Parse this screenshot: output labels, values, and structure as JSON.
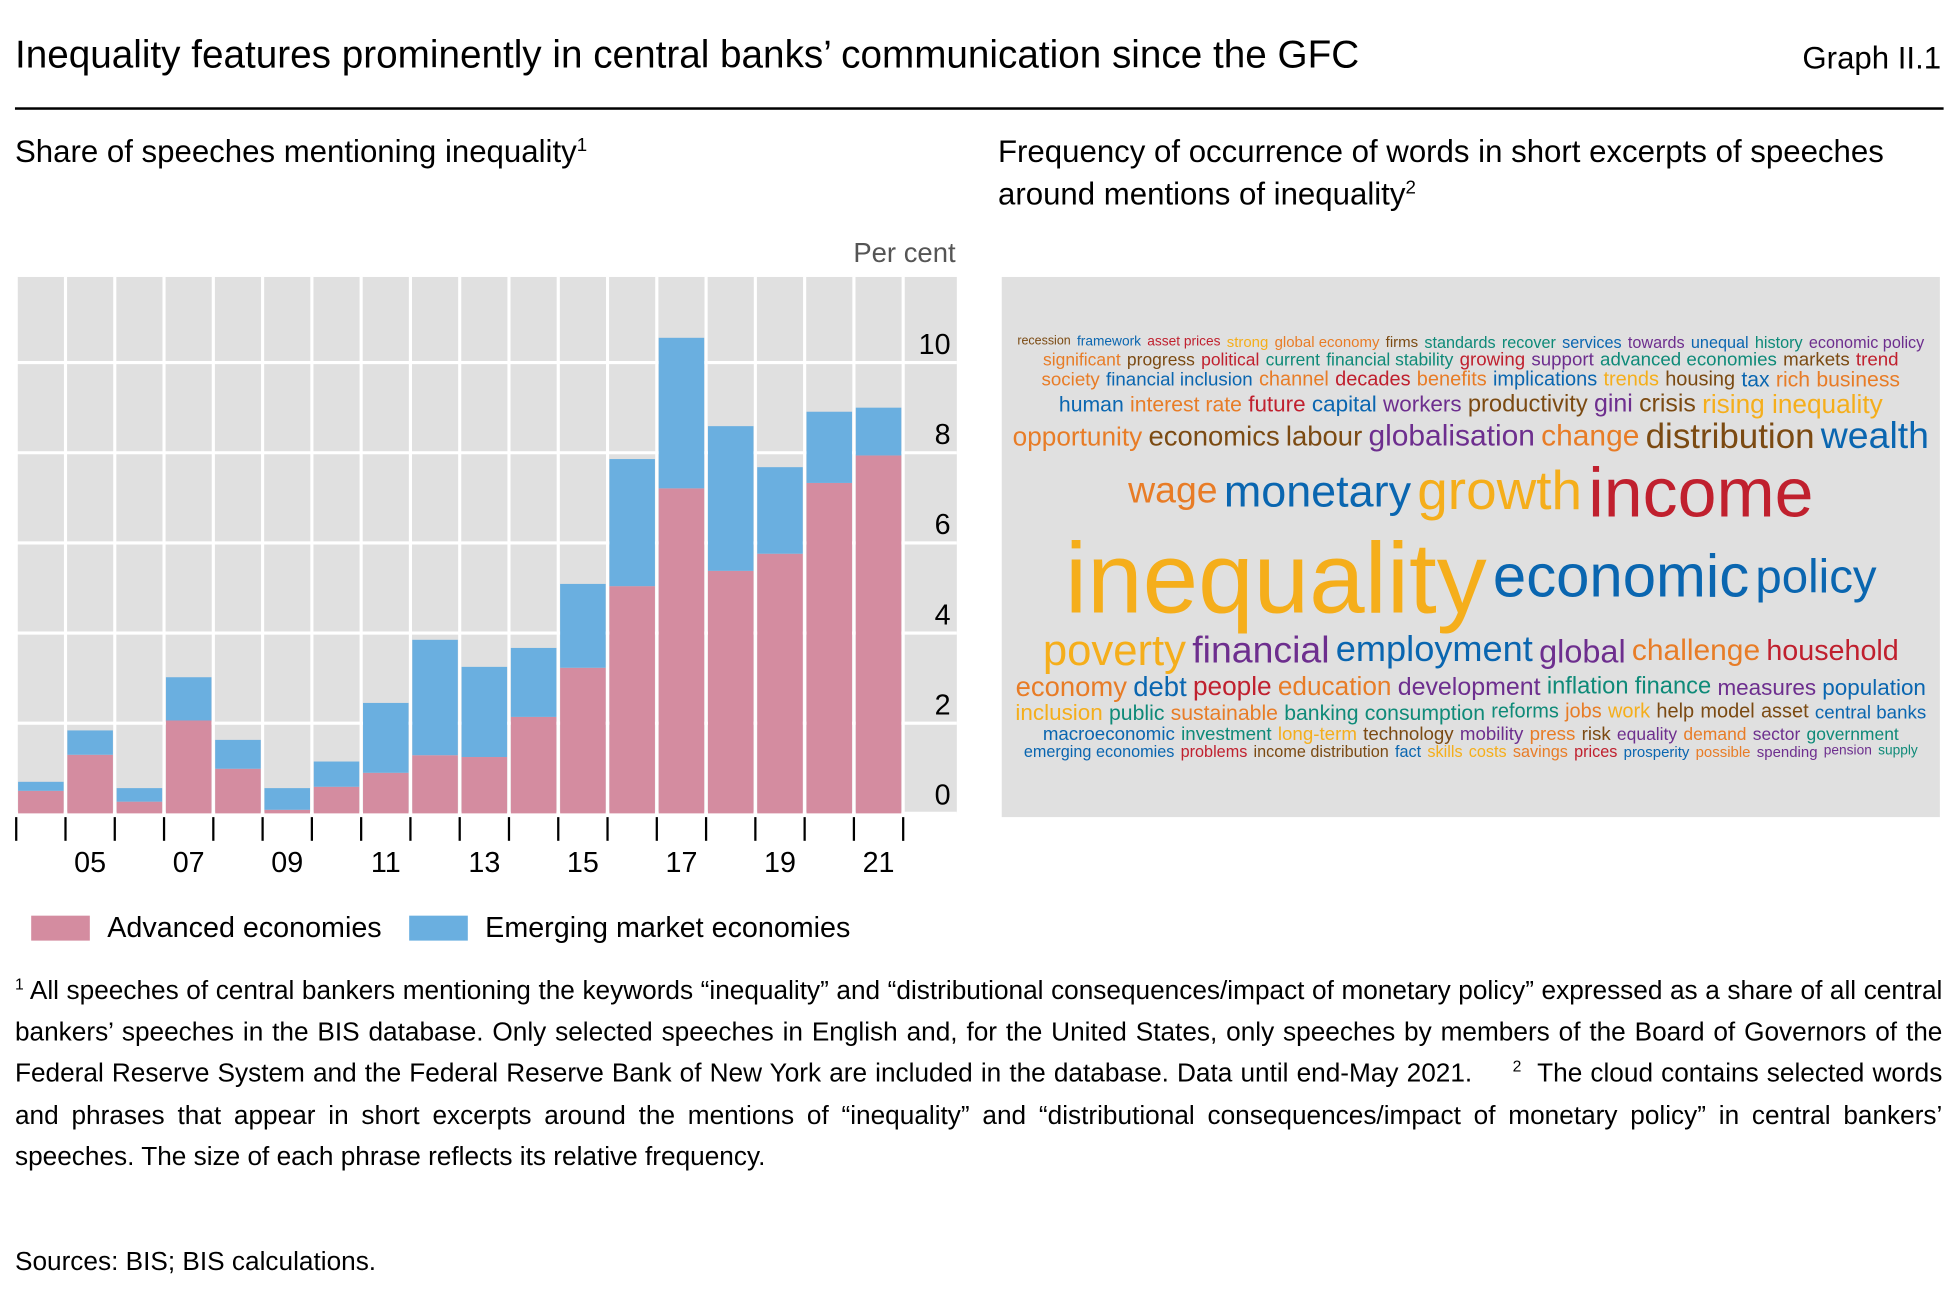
{
  "header": {
    "title": "Inequality features prominently in central banks’ communication since the GFC",
    "graph_number": "Graph II.1"
  },
  "left_panel": {
    "subtitle": "Share of speeches mentioning inequality",
    "subtitle_note": "1"
  },
  "right_panel": {
    "subtitle": "Frequency of occurrence of words in short excerpts of speeches around mentions of inequality",
    "subtitle_note": "2"
  },
  "colors": {
    "advanced": "#d48ca0",
    "emerging": "#6aafe0",
    "plot_bg": "#e0e0e0",
    "Y": "#f5ae1b",
    "R": "#c0202e",
    "B": "#0a66b0",
    "P": "#6d2e8e",
    "Br": "#7b4a12",
    "T": "#0e8a78",
    "O": "#e87c26"
  },
  "chart_data": {
    "type": "bar",
    "stacked": true,
    "title": "Share of speeches mentioning inequality",
    "ylabel": "Per cent",
    "xlabel": "",
    "categories": [
      "04",
      "05",
      "06",
      "07",
      "08",
      "09",
      "10",
      "11",
      "12",
      "13",
      "14",
      "15",
      "16",
      "17",
      "18",
      "19",
      "20",
      "21"
    ],
    "x_tick_labels": [
      "05",
      "07",
      "09",
      "11",
      "13",
      "15",
      "17",
      "19",
      "21"
    ],
    "y_ticks": [
      "0",
      "2",
      "4",
      "6",
      "8",
      "10"
    ],
    "ylim": [
      0,
      11.9
    ],
    "grid": true,
    "legend_position": "bottom",
    "series": [
      {
        "name": "Advanced economies",
        "values": [
          0.5,
          1.3,
          0.26,
          2.06,
          0.99,
          0.08,
          0.59,
          0.9,
          1.29,
          1.25,
          2.14,
          3.23,
          5.04,
          7.21,
          5.38,
          5.76,
          7.33,
          7.94
        ]
      },
      {
        "name": "Emerging market economies",
        "values": [
          0.2,
          0.54,
          0.3,
          0.96,
          0.64,
          0.48,
          0.56,
          1.55,
          2.56,
          2.0,
          1.53,
          1.86,
          2.82,
          3.34,
          3.21,
          1.92,
          1.58,
          1.06
        ]
      }
    ]
  },
  "wordcloud": {
    "words": [
      {
        "text": "inequality",
        "color": "Y"
      },
      {
        "text": "income",
        "color": "R"
      },
      {
        "text": "economic",
        "color": "B"
      },
      {
        "text": "growth",
        "color": "Y"
      },
      {
        "text": "monetary",
        "color": "B"
      },
      {
        "text": "policy",
        "color": "B"
      },
      {
        "text": "distribution",
        "color": "Br"
      },
      {
        "text": "poverty",
        "color": "Y"
      },
      {
        "text": "employment",
        "color": "B"
      },
      {
        "text": "wage",
        "color": "O"
      },
      {
        "text": "financial",
        "color": "P"
      },
      {
        "text": "household",
        "color": "R"
      },
      {
        "text": "wealth",
        "color": "B"
      },
      {
        "text": "global",
        "color": "P"
      },
      {
        "text": "labour",
        "color": "Br"
      },
      {
        "text": "opportunity",
        "color": "O"
      },
      {
        "text": "people",
        "color": "R"
      },
      {
        "text": "workers",
        "color": "P"
      },
      {
        "text": "central banks",
        "color": "B"
      },
      {
        "text": "change",
        "color": "O"
      },
      {
        "text": "economy",
        "color": "O"
      },
      {
        "text": "economics",
        "color": "Br"
      },
      {
        "text": "crisis",
        "color": "Br"
      },
      {
        "text": "rising inequality",
        "color": "Y"
      },
      {
        "text": "development",
        "color": "P"
      },
      {
        "text": "inflation",
        "color": "T"
      },
      {
        "text": "interest rate",
        "color": "O"
      },
      {
        "text": "financial inclusion",
        "color": "B"
      },
      {
        "text": "measures",
        "color": "P"
      },
      {
        "text": "education",
        "color": "O"
      },
      {
        "text": "macroeconomic",
        "color": "B"
      },
      {
        "text": "public",
        "color": "T"
      },
      {
        "text": "financial stability",
        "color": "T"
      },
      {
        "text": "reforms",
        "color": "T"
      },
      {
        "text": "equality",
        "color": "P"
      },
      {
        "text": "emerging economies",
        "color": "B"
      },
      {
        "text": "society",
        "color": "O"
      },
      {
        "text": "housing",
        "color": "Br"
      },
      {
        "text": "jobs",
        "color": "O"
      },
      {
        "text": "trends",
        "color": "Y"
      },
      {
        "text": "current",
        "color": "T"
      },
      {
        "text": "work",
        "color": "Y"
      },
      {
        "text": "firms",
        "color": "Br"
      },
      {
        "text": "investment",
        "color": "T"
      },
      {
        "text": "economic policy",
        "color": "P"
      },
      {
        "text": "demand",
        "color": "O"
      },
      {
        "text": "political",
        "color": "R"
      },
      {
        "text": "prosperity",
        "color": "B"
      },
      {
        "text": "asset prices",
        "color": "R"
      },
      {
        "text": "productivity",
        "color": "Br"
      },
      {
        "text": "sector",
        "color": "P"
      },
      {
        "text": "problems",
        "color": "R"
      },
      {
        "text": "human",
        "color": "B"
      },
      {
        "text": "history",
        "color": "T"
      },
      {
        "text": "trend",
        "color": "R"
      },
      {
        "text": "global economy",
        "color": "O"
      },
      {
        "text": "implications",
        "color": "B"
      },
      {
        "text": "long-term",
        "color": "Y"
      },
      {
        "text": "help",
        "color": "Br"
      },
      {
        "text": "markets",
        "color": "Br"
      },
      {
        "text": "sustainable",
        "color": "O"
      },
      {
        "text": "technology",
        "color": "Br"
      },
      {
        "text": "capital",
        "color": "B"
      },
      {
        "text": "business",
        "color": "O"
      },
      {
        "text": "advanced economies",
        "color": "T"
      },
      {
        "text": "population",
        "color": "B"
      },
      {
        "text": "mobility",
        "color": "P"
      },
      {
        "text": "income distribution",
        "color": "Br"
      },
      {
        "text": "benefits",
        "color": "O"
      },
      {
        "text": "finance",
        "color": "T"
      },
      {
        "text": "debt",
        "color": "B"
      },
      {
        "text": "challenge",
        "color": "O"
      },
      {
        "text": "model",
        "color": "Br"
      },
      {
        "text": "future",
        "color": "R"
      },
      {
        "text": "banking",
        "color": "T"
      },
      {
        "text": "unequal",
        "color": "B"
      },
      {
        "text": "globalisation",
        "color": "P"
      },
      {
        "text": "progress",
        "color": "Br"
      },
      {
        "text": "support",
        "color": "P"
      },
      {
        "text": "government",
        "color": "T"
      },
      {
        "text": "press",
        "color": "O"
      },
      {
        "text": "growing",
        "color": "R"
      },
      {
        "text": "inclusion",
        "color": "Y"
      },
      {
        "text": "decades",
        "color": "R"
      },
      {
        "text": "asset",
        "color": "Br"
      },
      {
        "text": "gini",
        "color": "P"
      },
      {
        "text": "fact",
        "color": "B"
      },
      {
        "text": "rich",
        "color": "O"
      },
      {
        "text": "consumption",
        "color": "T"
      },
      {
        "text": "significant",
        "color": "O"
      },
      {
        "text": "towards",
        "color": "P"
      },
      {
        "text": "possible",
        "color": "O"
      },
      {
        "text": "strong",
        "color": "Y"
      },
      {
        "text": "recession",
        "color": "Br"
      },
      {
        "text": "skills",
        "color": "Y"
      },
      {
        "text": "pension",
        "color": "P"
      },
      {
        "text": "tax",
        "color": "B"
      },
      {
        "text": "services",
        "color": "B"
      },
      {
        "text": "costs",
        "color": "Y"
      },
      {
        "text": "risk",
        "color": "Br"
      },
      {
        "text": "recover",
        "color": "T"
      },
      {
        "text": "savings",
        "color": "O"
      },
      {
        "text": "channel",
        "color": "O"
      },
      {
        "text": "standards",
        "color": "T"
      },
      {
        "text": "prices",
        "color": "R"
      },
      {
        "text": "spending",
        "color": "P"
      },
      {
        "text": "framework",
        "color": "B"
      },
      {
        "text": "supply",
        "color": "T"
      }
    ]
  },
  "legend": [
    {
      "label": "Advanced economies"
    },
    {
      "label": "Emerging market economies"
    }
  ],
  "footnotes": {
    "note1_mark": "1",
    "note1": "All speeches of central bankers mentioning the keywords “inequality” and “distributional consequences/impact of monetary policy” expressed as a share of all central bankers’ speeches in the BIS database. Only selected speeches in English and, for the United States, only speeches by members of the Board of Governors of the Federal Reserve System and the Federal Reserve Bank of New York are included in the database. Data until end-May 2021.",
    "note2_mark": "2",
    "note2": "The cloud contains selected words and phrases that appear in short excerpts around the mentions of “inequality” and “distributional consequences/impact of monetary policy” in central bankers’ speeches. The size of each phrase reflects its relative frequency.",
    "sources": "Sources: BIS; BIS calculations."
  }
}
